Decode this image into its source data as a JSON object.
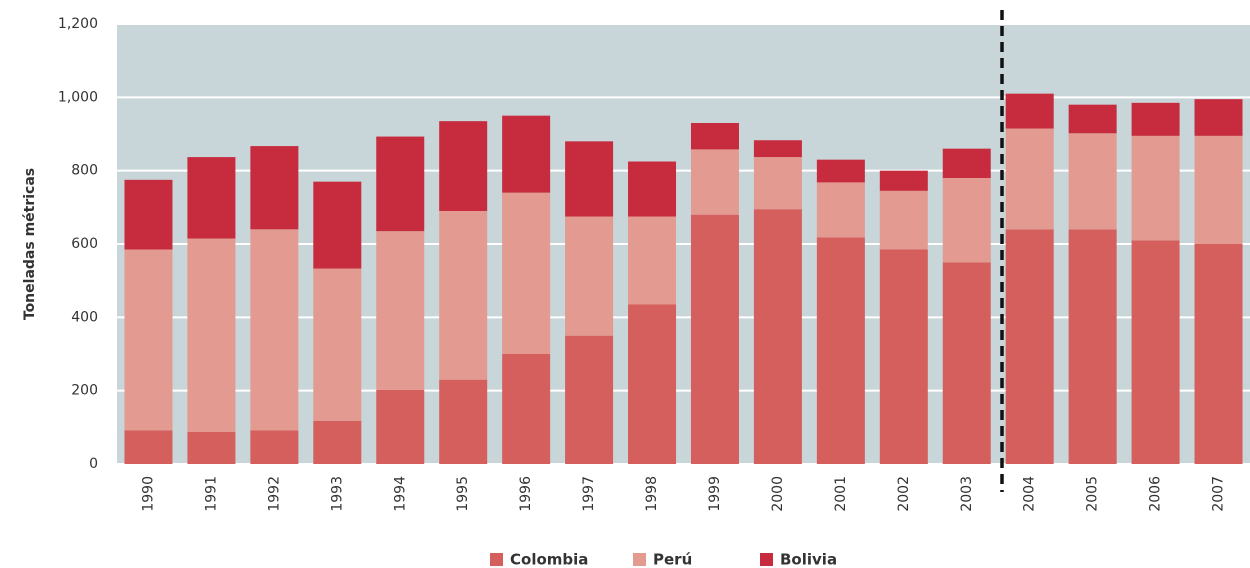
{
  "chart_data": {
    "type": "stacked-bar",
    "y_label": "Toneladas métricas",
    "categories": [
      "1990",
      "1991",
      "1992",
      "1993",
      "1994",
      "1995",
      "1996",
      "1997",
      "1998",
      "1999",
      "2000",
      "2001",
      "2002",
      "2003",
      "2004",
      "2005",
      "2006",
      "2007"
    ],
    "series": [
      {
        "name": "Colombia",
        "color": "#d55f5d",
        "values": [
          92,
          88,
          92,
          118,
          202,
          230,
          300,
          350,
          435,
          680,
          695,
          618,
          585,
          550,
          640,
          640,
          610,
          600
        ]
      },
      {
        "name": "Perú",
        "color": "#e39a90",
        "values": [
          493,
          527,
          548,
          415,
          433,
          460,
          440,
          325,
          240,
          178,
          142,
          150,
          160,
          230,
          275,
          262,
          285,
          295
        ]
      },
      {
        "name": "Bolivia",
        "color": "#c62c3e",
        "values": [
          190,
          222,
          227,
          237,
          258,
          245,
          210,
          205,
          150,
          72,
          46,
          62,
          55,
          80,
          95,
          78,
          90,
          100
        ]
      }
    ],
    "ylim": [
      0,
      1200
    ],
    "yticks": [
      0,
      200,
      400,
      600,
      800,
      {
        "value": 1000,
        "label": "1,000"
      },
      {
        "value": 1200,
        "label": "1,200"
      }
    ],
    "grid": true
  }
}
